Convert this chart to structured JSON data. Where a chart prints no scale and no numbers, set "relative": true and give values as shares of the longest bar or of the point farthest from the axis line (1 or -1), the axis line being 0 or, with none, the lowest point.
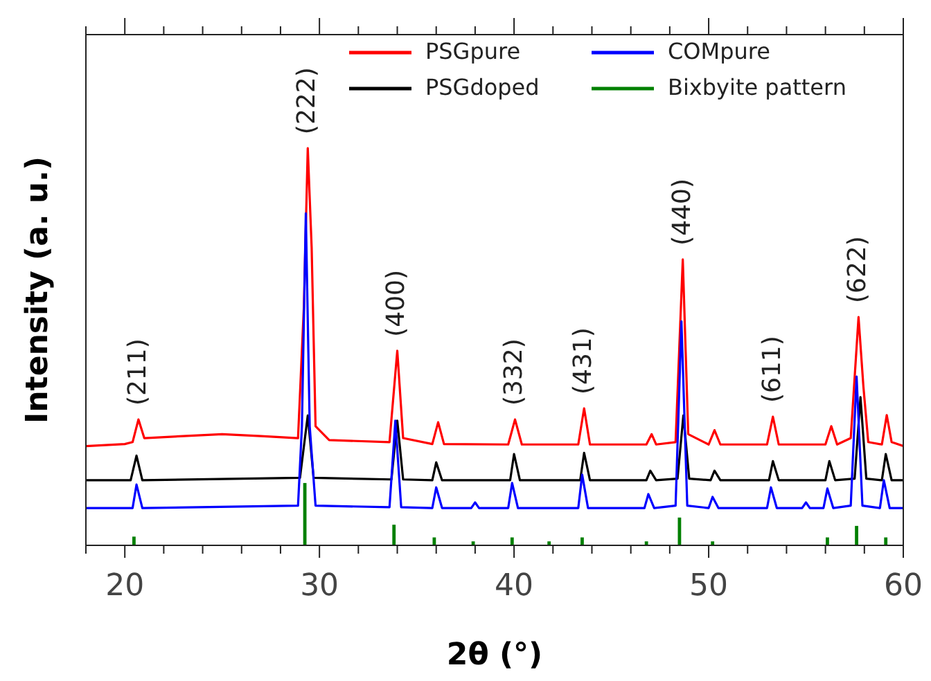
{
  "chart_data": {
    "type": "line",
    "relative": true,
    "xlabel": "2θ (°)",
    "ylabel": "Intensity (a. u.)",
    "xlim": [
      18,
      60
    ],
    "xticks": [
      {
        "value": 18,
        "label": null
      },
      20,
      {
        "value": 22,
        "label": null
      },
      {
        "value": 24,
        "label": null
      },
      {
        "value": 26,
        "label": null
      },
      {
        "value": 28,
        "label": null
      },
      30,
      {
        "value": 32,
        "label": null
      },
      {
        "value": 34,
        "label": null
      },
      {
        "value": 36,
        "label": null
      },
      {
        "value": 38,
        "label": null
      },
      40,
      {
        "value": 42,
        "label": null
      },
      {
        "value": 44,
        "label": null
      },
      {
        "value": 46,
        "label": null
      },
      {
        "value": 48,
        "label": null
      },
      50,
      {
        "value": 52,
        "label": null
      },
      {
        "value": 54,
        "label": null
      },
      {
        "value": 56,
        "label": null
      },
      {
        "value": 58,
        "label": null
      },
      60
    ],
    "legend": "top",
    "grid": false,
    "line_style": "solid",
    "marker": "none",
    "series": [
      {
        "name": "PSGpure",
        "color": "#ff0000",
        "x": [
          18,
          20,
          20.4,
          20.7,
          21,
          23,
          25,
          27,
          28.9,
          29.2,
          29.4,
          29.6,
          29.8,
          30.5,
          33.6,
          34.0,
          34.3,
          35.8,
          36.1,
          36.4,
          39.7,
          40.05,
          40.4,
          43.3,
          43.6,
          43.9,
          46.8,
          47.07,
          47.3,
          48.3,
          48.67,
          48.95,
          50.0,
          50.3,
          50.6,
          53.0,
          53.3,
          53.6,
          56.0,
          56.3,
          56.6,
          57.3,
          57.7,
          57.95,
          58.2,
          58.9,
          59.15,
          59.4,
          60
        ],
        "values": [
          0.25,
          0.255,
          0.26,
          0.317,
          0.27,
          0.275,
          0.28,
          0.275,
          0.27,
          0.6,
          1.0,
          0.75,
          0.3,
          0.265,
          0.26,
          0.49,
          0.27,
          0.255,
          0.31,
          0.255,
          0.254,
          0.317,
          0.254,
          0.254,
          0.345,
          0.254,
          0.254,
          0.28,
          0.254,
          0.26,
          0.72,
          0.28,
          0.254,
          0.29,
          0.254,
          0.254,
          0.324,
          0.254,
          0.254,
          0.3,
          0.254,
          0.27,
          0.575,
          0.4,
          0.26,
          0.254,
          0.328,
          0.26,
          0.25
        ]
      },
      {
        "name": "PSGdoped",
        "color": "#000000",
        "x": [
          18,
          20.3,
          20.6,
          20.9,
          29.0,
          29.4,
          29.7,
          33.7,
          34.0,
          34.3,
          35.8,
          36.0,
          36.3,
          39.8,
          40.0,
          40.3,
          43.4,
          43.6,
          43.9,
          46.8,
          47.0,
          47.3,
          48.4,
          48.7,
          49.0,
          50.1,
          50.3,
          50.6,
          53.1,
          53.3,
          53.6,
          56.0,
          56.2,
          56.5,
          57.5,
          57.8,
          58.1,
          58.9,
          59.1,
          59.4,
          60
        ],
        "values": [
          0.164,
          0.164,
          0.226,
          0.164,
          0.17,
          0.327,
          0.17,
          0.166,
          0.314,
          0.166,
          0.164,
          0.209,
          0.164,
          0.164,
          0.23,
          0.164,
          0.164,
          0.233,
          0.164,
          0.164,
          0.188,
          0.164,
          0.168,
          0.327,
          0.168,
          0.164,
          0.188,
          0.164,
          0.164,
          0.212,
          0.164,
          0.164,
          0.212,
          0.164,
          0.168,
          0.373,
          0.168,
          0.164,
          0.23,
          0.164,
          0.164
        ]
      },
      {
        "name": "COMpure",
        "color": "#0000ff",
        "x": [
          18,
          20.4,
          20.6,
          20.9,
          28.9,
          29.1,
          29.3,
          29.5,
          29.8,
          33.6,
          33.9,
          34.2,
          35.8,
          36.0,
          36.3,
          37.8,
          38.0,
          38.2,
          39.7,
          39.9,
          40.2,
          43.3,
          43.5,
          43.8,
          46.7,
          46.9,
          47.2,
          48.3,
          48.6,
          48.9,
          50.0,
          50.2,
          50.5,
          53.0,
          53.2,
          53.5,
          54.8,
          55.0,
          55.2,
          55.9,
          56.1,
          56.4,
          57.3,
          57.6,
          57.9,
          58.8,
          59.0,
          59.3,
          60
        ],
        "values": [
          0.094,
          0.094,
          0.153,
          0.094,
          0.1,
          0.3,
          0.836,
          0.3,
          0.1,
          0.096,
          0.314,
          0.096,
          0.094,
          0.146,
          0.094,
          0.094,
          0.108,
          0.094,
          0.094,
          0.157,
          0.094,
          0.094,
          0.178,
          0.094,
          0.094,
          0.129,
          0.094,
          0.1,
          0.564,
          0.1,
          0.094,
          0.122,
          0.094,
          0.094,
          0.146,
          0.094,
          0.094,
          0.108,
          0.094,
          0.094,
          0.143,
          0.094,
          0.1,
          0.425,
          0.1,
          0.094,
          0.164,
          0.094,
          0.094
        ]
      },
      {
        "name": "Bixbyite pattern",
        "color": "#008000",
        "type": "bar",
        "x": [
          20.47,
          29.25,
          33.83,
          35.9,
          37.9,
          39.9,
          41.8,
          43.5,
          46.8,
          48.5,
          50.2,
          56.1,
          57.6,
          59.1
        ],
        "values": [
          0.022,
          0.157,
          0.052,
          0.02,
          0.01,
          0.02,
          0.01,
          0.02,
          0.01,
          0.07,
          0.01,
          0.02,
          0.049,
          0.02
        ]
      }
    ],
    "annotations": [
      {
        "text": "(211)",
        "x": 20.7,
        "y": 0.317
      },
      {
        "text": "(222)",
        "x": 29.4,
        "y": 1.0
      },
      {
        "text": "(400)",
        "x": 34.0,
        "y": 0.49
      },
      {
        "text": "(332)",
        "x": 40.05,
        "y": 0.317
      },
      {
        "text": "(431)",
        "x": 43.6,
        "y": 0.345
      },
      {
        "text": "(440)",
        "x": 48.67,
        "y": 0.72
      },
      {
        "text": "(611)",
        "x": 53.3,
        "y": 0.324
      },
      {
        "text": "(622)",
        "x": 57.7,
        "y": 0.575
      }
    ]
  }
}
